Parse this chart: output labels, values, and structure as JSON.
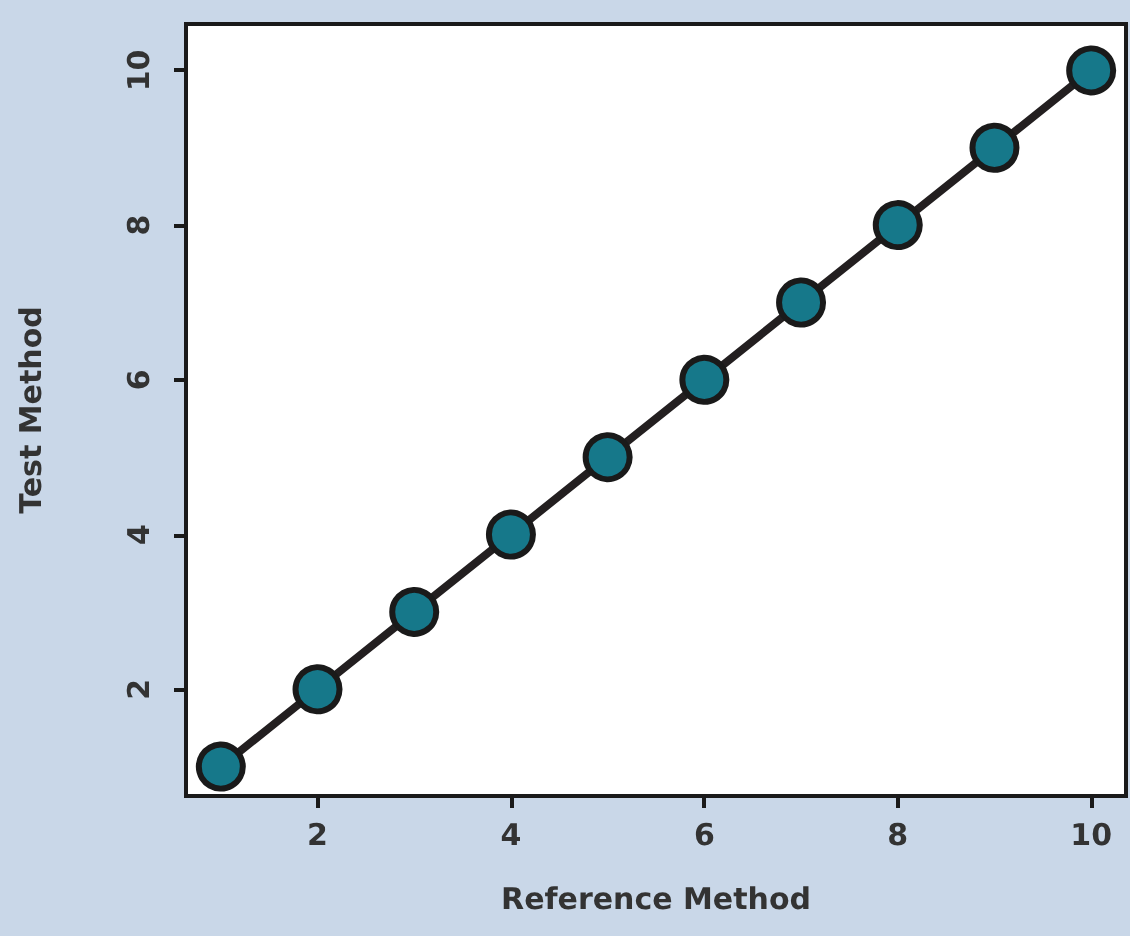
{
  "chart_data": {
    "type": "line",
    "xlabel": "Reference Method",
    "ylabel": "Test Method",
    "x": [
      1,
      2,
      3,
      4,
      5,
      6,
      7,
      8,
      9,
      10
    ],
    "series": [
      {
        "color": "#16788a",
        "values": [
          1,
          2,
          3,
          4,
          5,
          6,
          7,
          8,
          9,
          10
        ]
      }
    ],
    "xlim": [
      0.64,
      10.36
    ],
    "ylim": [
      0.62,
      10.6
    ],
    "xticks": [
      2,
      4,
      6,
      8,
      10
    ],
    "yticks": [
      2,
      4,
      6,
      8,
      10
    ],
    "grid": false,
    "marker": "circle",
    "line_style": "solid"
  }
}
